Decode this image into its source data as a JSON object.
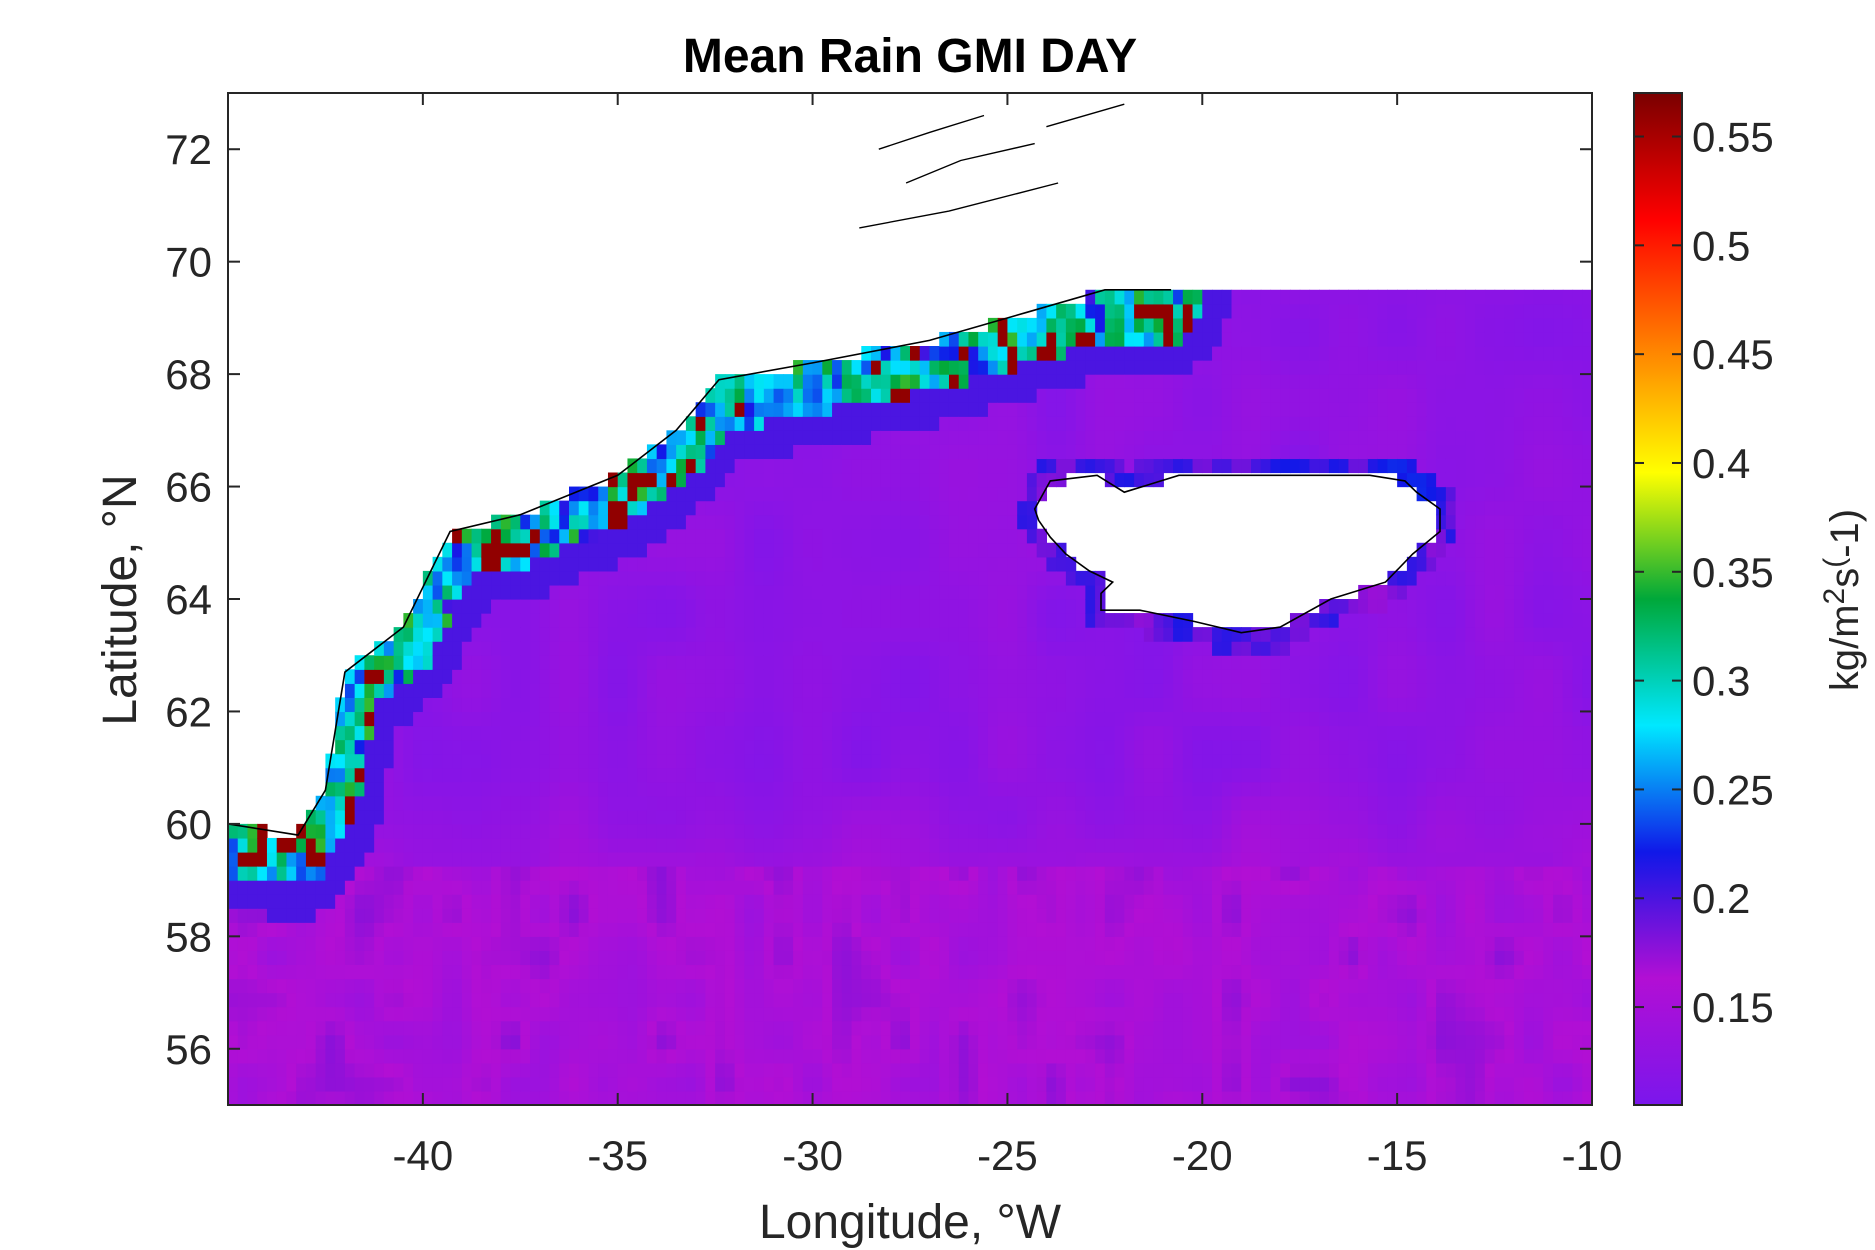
{
  "chart_data": {
    "type": "heatmap",
    "title": "Mean Rain GMI DAY",
    "xlabel": "Longitude, °W",
    "ylabel": "Latitude, °N",
    "xlim": [
      -45,
      -10
    ],
    "ylim": [
      55,
      73
    ],
    "xticks": [
      -40,
      -35,
      -30,
      -25,
      -20,
      -15,
      -10
    ],
    "yticks": [
      56,
      58,
      60,
      62,
      64,
      66,
      68,
      70,
      72
    ],
    "colorbar": {
      "label_base": "kg/m",
      "label_exp1": "2",
      "label_mid": "s",
      "label_exp2": "(",
      "label_tail": "-1)",
      "range": [
        0.105,
        0.57
      ],
      "ticks": [
        0.15,
        0.2,
        0.25,
        0.3,
        0.35,
        0.4,
        0.45,
        0.5,
        0.55
      ],
      "colormap": [
        "#7b16ec",
        "#b20fd4",
        "#1018e8",
        "#00e8ff",
        "#00a83a",
        "#ffff00",
        "#ff8000",
        "#ff0000",
        "#7a0000"
      ]
    },
    "fields": {
      "open_ocean_mean": 0.125,
      "open_ocean_south_of_59N": 0.15,
      "greenland_coastal_band": 0.35,
      "greenland_coastal_peak": 0.56,
      "iceland_coastal": 0.2
    },
    "data_extent": {
      "lon": [
        -45,
        -10
      ],
      "lat": [
        55,
        69.5
      ]
    }
  }
}
